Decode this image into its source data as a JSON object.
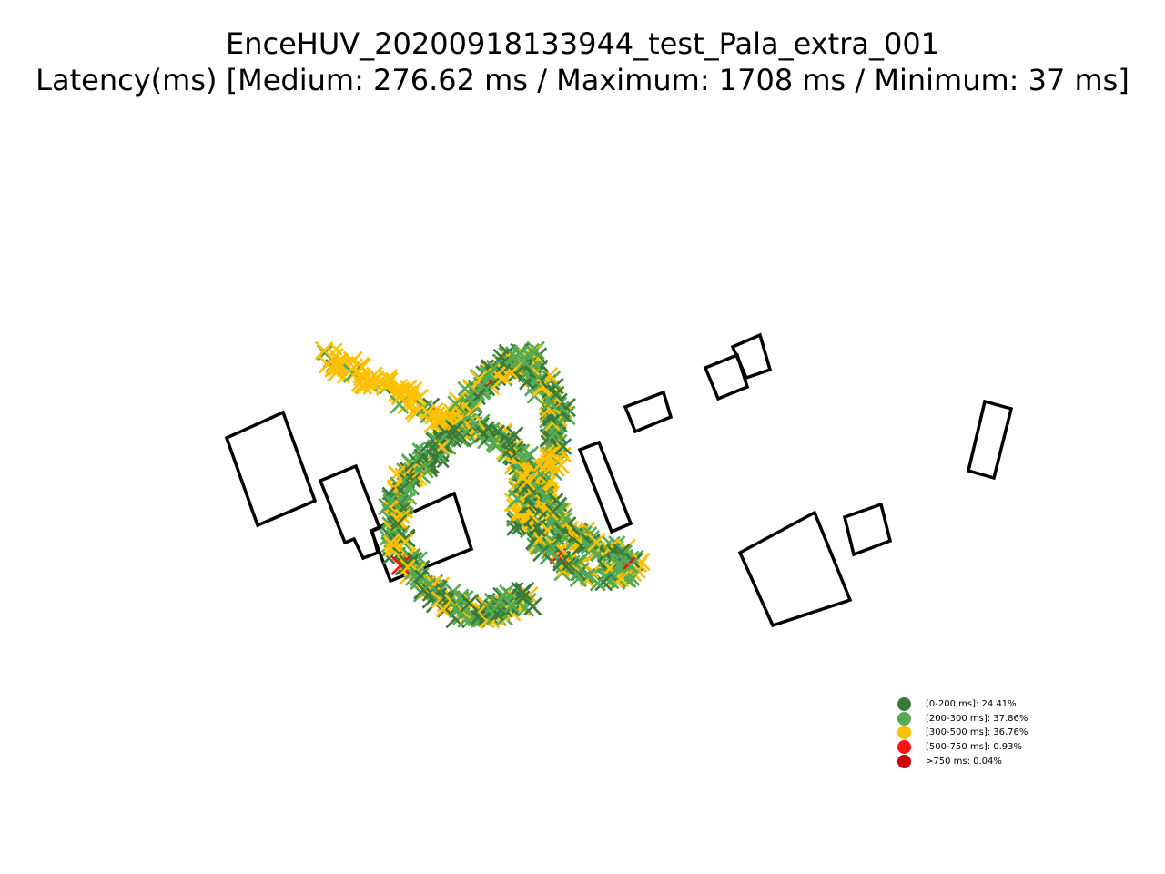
{
  "chart_data": {
    "type": "scatter",
    "title": "EnceHUV_20200918133944_test_Pala_extra_001",
    "subtitle": "Latency(ms) [Medium: 276.62 ms / Maximum: 1708 ms / Minimum: 37 ms]",
    "marker": "x",
    "axes_visible": false,
    "grid": false,
    "legend_position": "lower-right",
    "categories": [
      {
        "label": "[0-200 ms]: 24.41%",
        "color": "#3a7a3a",
        "share": 24.41
      },
      {
        "label": "[200-300 ms]: 37.86%",
        "color": "#55aa55",
        "share": 37.86
      },
      {
        "label": "[300-500 ms]: 36.76%",
        "color": "#ffc000",
        "share": 36.76
      },
      {
        "label": "[500-750 ms]: 0.93%",
        "color": "#ff1010",
        "share": 0.93
      },
      {
        "label": ">750 ms: 0.04%",
        "color": "#cc0000",
        "share": 0.04
      }
    ]
  }
}
